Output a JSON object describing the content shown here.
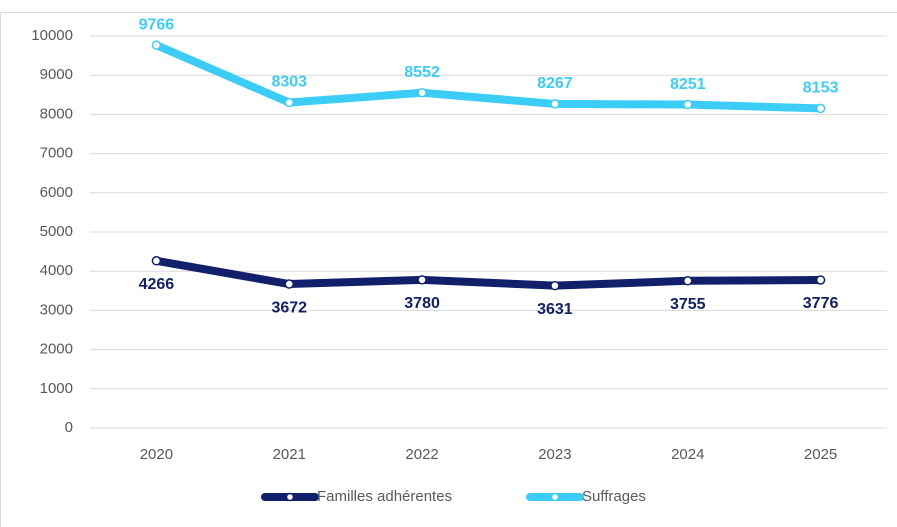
{
  "chart_data": {
    "type": "line",
    "categories": [
      "2020",
      "2021",
      "2022",
      "2023",
      "2024",
      "2025"
    ],
    "series": [
      {
        "name": "Familles adhérentes",
        "color": "#12206b",
        "values": [
          4266,
          3672,
          3780,
          3631,
          3755,
          3776
        ]
      },
      {
        "name": "Suffrages",
        "color": "#3ccdf7",
        "values": [
          9766,
          8303,
          8552,
          8267,
          8251,
          8153
        ]
      }
    ],
    "ylim": [
      0,
      10000
    ],
    "yticks": [
      0,
      1000,
      2000,
      3000,
      4000,
      5000,
      6000,
      7000,
      8000,
      9000,
      10000
    ],
    "grid": true,
    "legend": "bottom"
  }
}
